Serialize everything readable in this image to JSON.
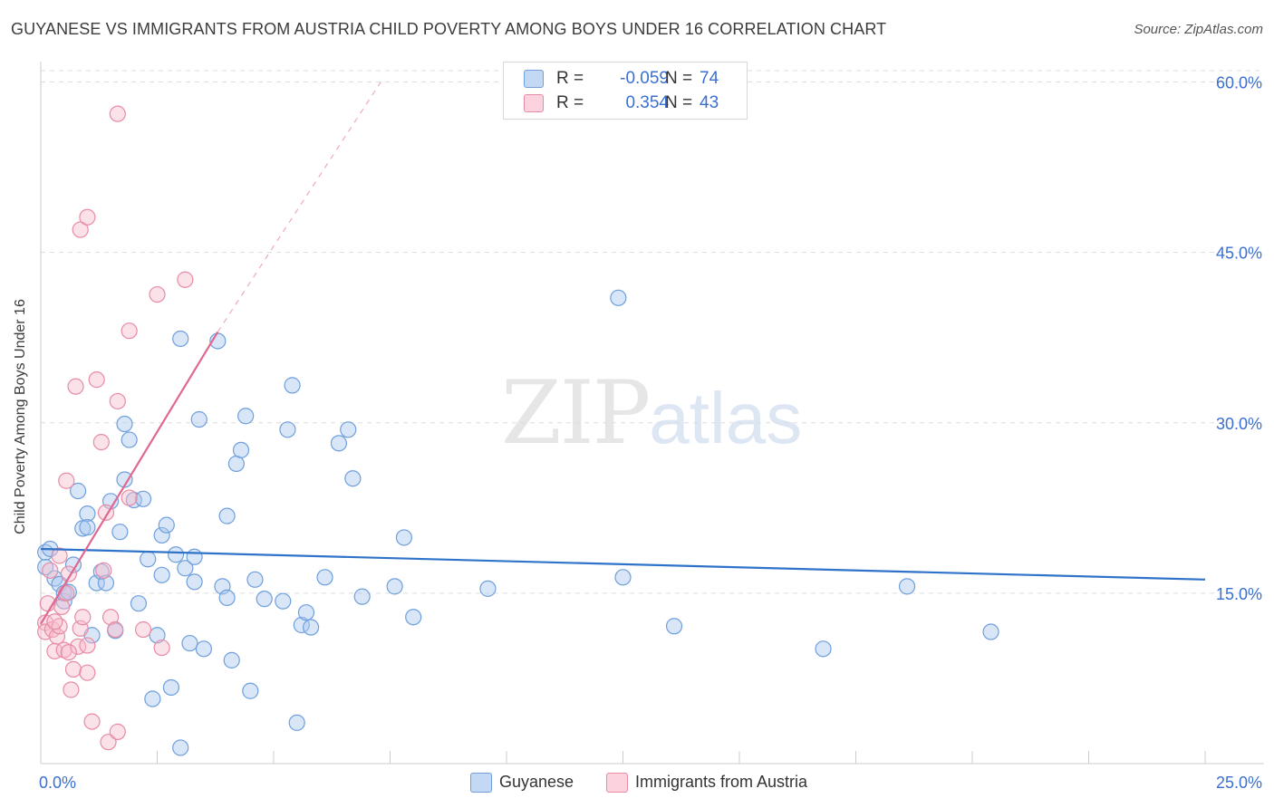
{
  "title": "GUYANESE VS IMMIGRANTS FROM AUSTRIA CHILD POVERTY AMONG BOYS UNDER 16 CORRELATION CHART",
  "source": "Source: ZipAtlas.com",
  "watermark": {
    "zip": "ZIP",
    "atlas": "atlas"
  },
  "legend": {
    "series1": {
      "r_label": "R =",
      "r_value": "-0.059",
      "n_label": "N =",
      "n_value": "74",
      "color": "#a8c8f0"
    },
    "series2": {
      "r_label": "R =",
      "r_value": "0.354",
      "n_label": "N =",
      "n_value": "43",
      "color": "#f6bccc"
    }
  },
  "bottom_legend": {
    "series1": "Guyanese",
    "series2": "Immigrants from Austria"
  },
  "chart_data": {
    "type": "scatter",
    "title": "GUYANESE VS IMMIGRANTS FROM AUSTRIA CHILD POVERTY AMONG BOYS UNDER 16 CORRELATION CHART",
    "xlabel": "",
    "ylabel": "Child Poverty Among Boys Under 16",
    "xlim": [
      0,
      25
    ],
    "ylim": [
      0,
      61
    ],
    "x_tick_labels": [
      "0.0%",
      "25.0%"
    ],
    "y_ticks": [
      15,
      30,
      45,
      60
    ],
    "y_tick_labels": [
      "15.0%",
      "30.0%",
      "45.0%",
      "60.0%"
    ],
    "grid": true,
    "series": [
      {
        "name": "Guyanese",
        "color": "#a8c8f0",
        "stroke": "#6f9fdc",
        "trend_color": "#2f73c9",
        "trend": {
          "x": [
            0,
            25
          ],
          "y": [
            18.9,
            16.2
          ]
        },
        "points": [
          [
            0.1,
            18.6
          ],
          [
            0.1,
            17.3
          ],
          [
            0.2,
            18.9
          ],
          [
            0.3,
            16.3
          ],
          [
            0.4,
            15.8
          ],
          [
            0.5,
            14.3
          ],
          [
            0.5,
            15.0
          ],
          [
            0.6,
            15.1
          ],
          [
            0.7,
            17.5
          ],
          [
            0.8,
            24.0
          ],
          [
            0.9,
            20.7
          ],
          [
            1.0,
            22.0
          ],
          [
            1.0,
            20.8
          ],
          [
            1.1,
            11.3
          ],
          [
            1.2,
            15.9
          ],
          [
            1.3,
            16.9
          ],
          [
            1.4,
            15.9
          ],
          [
            1.5,
            23.1
          ],
          [
            1.6,
            11.7
          ],
          [
            1.7,
            20.4
          ],
          [
            1.8,
            29.9
          ],
          [
            1.8,
            25.0
          ],
          [
            1.9,
            28.5
          ],
          [
            2.0,
            23.2
          ],
          [
            2.1,
            14.1
          ],
          [
            2.2,
            23.3
          ],
          [
            2.3,
            18.0
          ],
          [
            2.4,
            5.7
          ],
          [
            2.5,
            11.3
          ],
          [
            2.6,
            20.1
          ],
          [
            2.6,
            16.6
          ],
          [
            2.7,
            21.0
          ],
          [
            2.8,
            6.7
          ],
          [
            2.9,
            18.4
          ],
          [
            3.0,
            37.4
          ],
          [
            3.0,
            1.4
          ],
          [
            3.1,
            17.2
          ],
          [
            3.2,
            10.6
          ],
          [
            3.3,
            16.0
          ],
          [
            3.3,
            18.2
          ],
          [
            3.4,
            30.3
          ],
          [
            3.5,
            10.1
          ],
          [
            3.8,
            37.2
          ],
          [
            3.9,
            15.6
          ],
          [
            4.0,
            21.8
          ],
          [
            4.0,
            14.6
          ],
          [
            4.1,
            9.1
          ],
          [
            4.2,
            26.4
          ],
          [
            4.3,
            27.6
          ],
          [
            4.4,
            30.6
          ],
          [
            4.5,
            6.4
          ],
          [
            4.6,
            16.2
          ],
          [
            4.8,
            14.5
          ],
          [
            5.2,
            14.3
          ],
          [
            5.3,
            29.4
          ],
          [
            5.4,
            33.3
          ],
          [
            5.5,
            3.6
          ],
          [
            5.6,
            12.2
          ],
          [
            5.7,
            13.3
          ],
          [
            5.8,
            12.0
          ],
          [
            6.1,
            16.4
          ],
          [
            6.4,
            28.2
          ],
          [
            6.6,
            29.4
          ],
          [
            6.7,
            25.1
          ],
          [
            6.9,
            14.7
          ],
          [
            7.6,
            15.6
          ],
          [
            7.8,
            19.9
          ],
          [
            8.0,
            12.9
          ],
          [
            9.6,
            15.4
          ],
          [
            12.4,
            41.0
          ],
          [
            12.5,
            16.4
          ],
          [
            13.6,
            12.1
          ],
          [
            16.8,
            10.1
          ],
          [
            18.6,
            15.6
          ],
          [
            20.4,
            11.6
          ]
        ]
      },
      {
        "name": "Immigrants from Austria",
        "color": "#f6bccc",
        "stroke": "#e88ba5",
        "trend_color": "#e06890",
        "trend": {
          "x": [
            0,
            3.8
          ],
          "y": [
            12.3,
            38.0
          ]
        },
        "trend_extension": {
          "x": [
            3.8,
            7.3
          ],
          "y": [
            38.0,
            60.0
          ]
        },
        "points": [
          [
            0.1,
            12.4
          ],
          [
            0.1,
            11.6
          ],
          [
            0.15,
            14.1
          ],
          [
            0.2,
            17.0
          ],
          [
            0.25,
            11.8
          ],
          [
            0.3,
            9.9
          ],
          [
            0.35,
            11.2
          ],
          [
            0.4,
            12.1
          ],
          [
            0.45,
            13.8
          ],
          [
            0.5,
            10.0
          ],
          [
            0.55,
            15.0
          ],
          [
            0.55,
            24.9
          ],
          [
            0.6,
            16.7
          ],
          [
            0.65,
            6.5
          ],
          [
            0.7,
            8.3
          ],
          [
            0.75,
            33.2
          ],
          [
            0.8,
            10.3
          ],
          [
            0.85,
            11.9
          ],
          [
            0.85,
            47.0
          ],
          [
            0.9,
            12.9
          ],
          [
            1.0,
            10.4
          ],
          [
            1.0,
            8.0
          ],
          [
            1.0,
            48.1
          ],
          [
            1.1,
            3.7
          ],
          [
            1.2,
            33.8
          ],
          [
            1.3,
            28.3
          ],
          [
            1.35,
            17.0
          ],
          [
            1.4,
            22.1
          ],
          [
            1.45,
            1.9
          ],
          [
            1.5,
            12.9
          ],
          [
            1.6,
            11.8
          ],
          [
            1.65,
            2.8
          ],
          [
            1.65,
            31.9
          ],
          [
            1.65,
            57.2
          ],
          [
            1.9,
            23.4
          ],
          [
            1.9,
            38.1
          ],
          [
            2.2,
            11.8
          ],
          [
            2.5,
            41.3
          ],
          [
            2.6,
            10.2
          ],
          [
            3.1,
            42.6
          ],
          [
            0.4,
            18.3
          ],
          [
            0.3,
            12.5
          ],
          [
            0.6,
            9.8
          ]
        ]
      }
    ]
  }
}
